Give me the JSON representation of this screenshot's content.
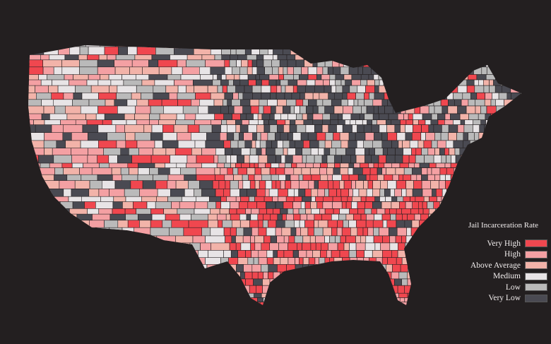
{
  "legend": {
    "title": "Jail Incarceration Rate",
    "items": [
      {
        "label": "Very High",
        "color": "#f0474f"
      },
      {
        "label": "High",
        "color": "#f4a0a3"
      },
      {
        "label": "Above Average",
        "color": "#f2b3a9"
      },
      {
        "label": "Medium",
        "color": "#e8e4e6"
      },
      {
        "label": "Low",
        "color": "#bababa"
      },
      {
        "label": "Very Low",
        "color": "#4a4a52"
      }
    ]
  },
  "background": "#231f20",
  "border_color": "#231f20"
}
